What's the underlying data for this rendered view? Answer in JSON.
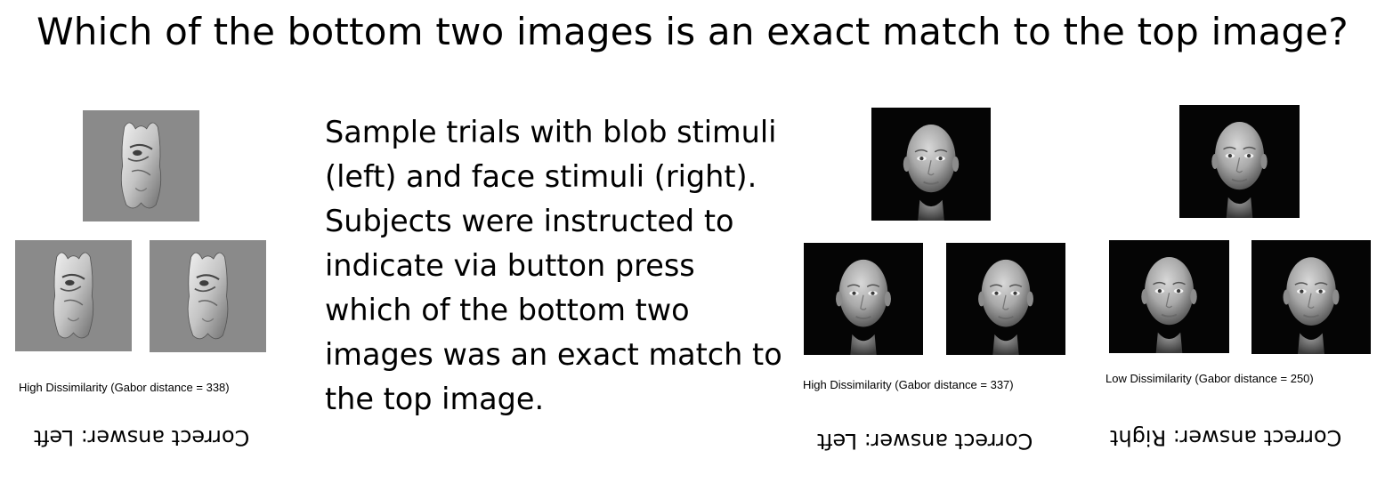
{
  "title": "Which of the bottom two images is an exact match to the top image?",
  "description": "Sample trials with blob stimuli (left) and face stimuli (right). Subjects were instructed to indicate via button press which of the bottom two images was an exact match to the top image.",
  "blob_trial": {
    "caption": "High Dissimilarity (Gabor distance = 338)",
    "answer": "Correct answer: Left"
  },
  "face_trial_high": {
    "caption": "High Dissimilarity (Gabor distance = 337)",
    "answer": "Correct answer: Left"
  },
  "face_trial_low": {
    "caption": "Low Dissimilarity (Gabor distance = 250)",
    "answer": "Correct answer: Right"
  },
  "colors": {
    "blob_background": "#8a8a8a",
    "face_background": "#050505",
    "text": "#000000"
  }
}
